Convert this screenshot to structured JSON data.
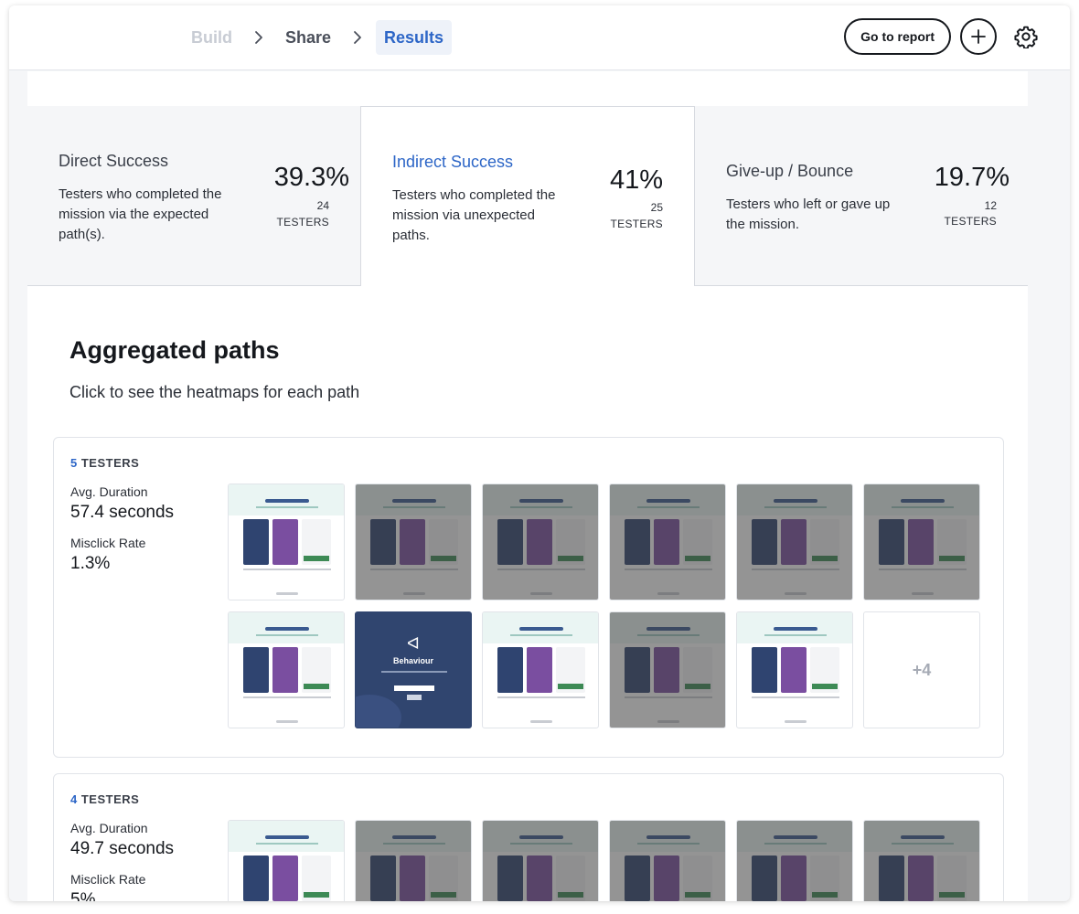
{
  "breadcrumb": {
    "items": [
      {
        "label": "Build"
      },
      {
        "label": "Share"
      },
      {
        "label": "Results"
      }
    ]
  },
  "header": {
    "report_label": "Go to report",
    "add_icon": "plus-icon",
    "settings_icon": "gear-icon"
  },
  "summary": [
    {
      "title": "Direct Success",
      "description": "Testers who completed the mission via the expected path(s).",
      "percent": "39.3%",
      "count": "24",
      "unit": "TESTERS"
    },
    {
      "title": "Indirect Success",
      "description": "Testers who completed the mission via unexpected paths.",
      "percent": "41%",
      "count": "25",
      "unit": "TESTERS"
    },
    {
      "title": "Give-up / Bounce",
      "description": "Testers who left or gave up the mission.",
      "percent": "19.7%",
      "count": "12",
      "unit": "TESTERS"
    }
  ],
  "paths_section": {
    "title": "Aggregated paths",
    "subtitle": "Click to see the heatmaps for each path"
  },
  "paths": [
    {
      "count": "5",
      "unit": "TESTERS",
      "duration_label": "Avg. Duration",
      "duration": "57.4 seconds",
      "misclick_label": "Misclick Rate",
      "misclick": "1.3%",
      "more_label": "+4"
    },
    {
      "count": "4",
      "unit": "TESTERS",
      "duration_label": "Avg. Duration",
      "duration": "49.7 seconds",
      "misclick_label": "Misclick Rate",
      "misclick": "5%"
    }
  ],
  "thumbnail_brand": "Behaviour",
  "colors": {
    "accent": "#2d66c7",
    "card_active_bg": "#ffffff",
    "brand_navy": "#30456f"
  }
}
